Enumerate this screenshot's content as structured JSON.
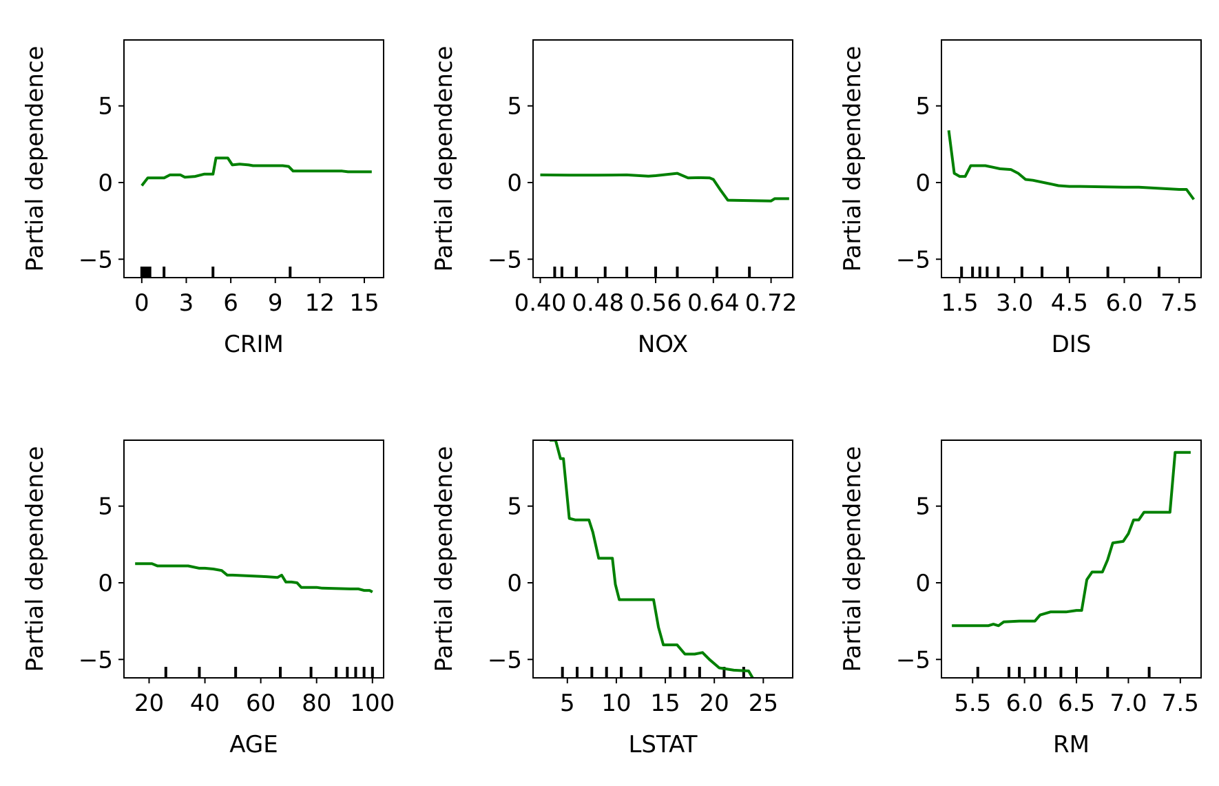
{
  "figure": {
    "background": "#ffffff",
    "line_color": "#008000",
    "rug_color": "#000000"
  },
  "chart_data": [
    {
      "type": "line",
      "xlabel": "CRIM",
      "ylabel": "Partial dependence",
      "xlim": [
        -1.2,
        16.3
      ],
      "ylim": [
        -6.2,
        9.3
      ],
      "xticks": [
        0,
        3,
        6,
        9,
        12,
        15
      ],
      "xtick_labels": [
        "0",
        "3",
        "6",
        "9",
        "12",
        "15"
      ],
      "yticks": [
        -5,
        0,
        5
      ],
      "ytick_labels": [
        "−5",
        "0",
        "5"
      ],
      "rug": [
        0.0,
        0.05,
        0.1,
        0.15,
        0.2,
        0.25,
        0.3,
        0.35,
        0.4,
        0.45,
        0.5,
        0.55,
        1.5,
        4.8,
        10.0
      ],
      "x": [
        0.0,
        0.4,
        1.5,
        1.9,
        2.6,
        2.9,
        3.6,
        4.2,
        4.8,
        5.0,
        5.8,
        6.1,
        6.6,
        7.2,
        7.5,
        9.5,
        9.9,
        10.2,
        13.5,
        13.9,
        15.5
      ],
      "y": [
        -0.2,
        0.3,
        0.3,
        0.5,
        0.5,
        0.35,
        0.4,
        0.55,
        0.55,
        1.6,
        1.6,
        1.15,
        1.2,
        1.15,
        1.1,
        1.1,
        1.05,
        0.75,
        0.75,
        0.7,
        0.7
      ]
    },
    {
      "type": "line",
      "xlabel": "NOX",
      "ylabel": "Partial dependence",
      "xlim": [
        0.39,
        0.75
      ],
      "ylim": [
        -6.2,
        9.3
      ],
      "xticks": [
        0.4,
        0.48,
        0.56,
        0.64,
        0.72
      ],
      "xtick_labels": [
        "0.40",
        "0.48",
        "0.56",
        "0.64",
        "0.72"
      ],
      "yticks": [
        -5,
        0,
        5
      ],
      "ytick_labels": [
        "−5",
        "0",
        "5"
      ],
      "rug": [
        0.42,
        0.43,
        0.45,
        0.49,
        0.52,
        0.56,
        0.59,
        0.645,
        0.69
      ],
      "x": [
        0.4,
        0.44,
        0.48,
        0.52,
        0.55,
        0.56,
        0.58,
        0.59,
        0.605,
        0.62,
        0.635,
        0.64,
        0.65,
        0.66,
        0.72,
        0.725,
        0.745
      ],
      "y": [
        0.5,
        0.48,
        0.48,
        0.5,
        0.42,
        0.45,
        0.55,
        0.6,
        0.3,
        0.32,
        0.3,
        0.2,
        -0.5,
        -1.15,
        -1.2,
        -1.05,
        -1.05
      ]
    },
    {
      "type": "line",
      "xlabel": "DIS",
      "ylabel": "Partial dependence",
      "xlim": [
        1.0,
        8.1
      ],
      "ylim": [
        -6.2,
        9.3
      ],
      "xticks": [
        1.5,
        3.0,
        4.5,
        6.0,
        7.5
      ],
      "xtick_labels": [
        "1.5",
        "3.0",
        "4.5",
        "6.0",
        "7.5"
      ],
      "yticks": [
        -5,
        0,
        5
      ],
      "ytick_labels": [
        "−5",
        "0",
        "5"
      ],
      "rug": [
        1.55,
        1.85,
        2.05,
        2.25,
        2.55,
        3.2,
        3.75,
        4.45,
        5.55,
        6.95
      ],
      "x": [
        1.2,
        1.35,
        1.5,
        1.65,
        1.8,
        2.2,
        2.4,
        2.6,
        2.9,
        3.1,
        3.3,
        3.5,
        4.0,
        4.2,
        4.5,
        4.8,
        6.0,
        6.4,
        7.5,
        7.7,
        7.9
      ],
      "y": [
        3.4,
        0.6,
        0.4,
        0.4,
        1.1,
        1.1,
        1.0,
        0.9,
        0.85,
        0.6,
        0.2,
        0.15,
        -0.1,
        -0.2,
        -0.25,
        -0.25,
        -0.3,
        -0.3,
        -0.45,
        -0.45,
        -1.1
      ]
    },
    {
      "type": "line",
      "xlabel": "AGE",
      "ylabel": "Partial dependence",
      "xlim": [
        11,
        104
      ],
      "ylim": [
        -6.2,
        9.3
      ],
      "xticks": [
        20,
        40,
        60,
        80,
        100
      ],
      "xtick_labels": [
        "20",
        "40",
        "60",
        "80",
        "100"
      ],
      "yticks": [
        -5,
        0,
        5
      ],
      "ytick_labels": [
        "−5",
        "0",
        "5"
      ],
      "rug": [
        26,
        38,
        51,
        67,
        78,
        87,
        91,
        94,
        97,
        100
      ],
      "x": [
        15,
        21,
        23,
        34,
        38,
        40,
        43,
        46,
        48,
        50,
        62,
        66,
        67.5,
        69,
        71,
        73,
        74.5,
        76,
        80,
        82,
        92,
        95,
        97,
        99,
        100
      ],
      "y": [
        1.25,
        1.25,
        1.1,
        1.1,
        0.95,
        0.95,
        0.9,
        0.8,
        0.5,
        0.5,
        0.4,
        0.35,
        0.5,
        0.05,
        0.05,
        0.0,
        -0.3,
        -0.3,
        -0.3,
        -0.35,
        -0.4,
        -0.4,
        -0.5,
        -0.5,
        -0.6
      ]
    },
    {
      "type": "line",
      "xlabel": "LSTAT",
      "ylabel": "Partial dependence",
      "xlim": [
        1.5,
        28.0
      ],
      "ylim": [
        -6.2,
        9.3
      ],
      "xticks": [
        5,
        10,
        15,
        20,
        25
      ],
      "xtick_labels": [
        "5",
        "10",
        "15",
        "20",
        "25"
      ],
      "yticks": [
        -5,
        0,
        5
      ],
      "ytick_labels": [
        "−5",
        "0",
        "5"
      ],
      "rug": [
        4.5,
        6.0,
        7.5,
        9.0,
        10.5,
        12.5,
        15.5,
        17.0,
        18.5,
        21.0,
        23.0
      ],
      "x": [
        3.2,
        3.8,
        4.3,
        4.6,
        5.2,
        5.8,
        7.2,
        7.6,
        8.2,
        8.6,
        9.6,
        9.9,
        10.3,
        11.2,
        13.8,
        14.3,
        14.8,
        16.2,
        17.0,
        18.0,
        18.8,
        19.5,
        20.5,
        22.0,
        23.5,
        24.0,
        27.0
      ],
      "y": [
        9.3,
        9.3,
        8.1,
        8.1,
        4.2,
        4.1,
        4.1,
        3.3,
        1.6,
        1.6,
        1.6,
        -0.1,
        -1.1,
        -1.1,
        -1.1,
        -2.9,
        -4.05,
        -4.05,
        -4.65,
        -4.65,
        -4.55,
        -5.0,
        -5.55,
        -5.7,
        -5.75,
        -6.3,
        -6.3
      ]
    },
    {
      "type": "line",
      "xlabel": "RM",
      "ylabel": "Partial dependence",
      "xlim": [
        5.2,
        7.7
      ],
      "ylim": [
        -6.2,
        9.3
      ],
      "xticks": [
        5.5,
        6.0,
        6.5,
        7.0,
        7.5
      ],
      "xtick_labels": [
        "5.5",
        "6.0",
        "6.5",
        "7.0",
        "7.5"
      ],
      "yticks": [
        -5,
        0,
        5
      ],
      "ytick_labels": [
        "−5",
        "0",
        "5"
      ],
      "rug": [
        5.55,
        5.85,
        5.95,
        6.1,
        6.2,
        6.35,
        6.5,
        6.8,
        7.2
      ],
      "x": [
        5.3,
        5.65,
        5.7,
        5.75,
        5.8,
        5.95,
        6.1,
        6.15,
        6.25,
        6.4,
        6.5,
        6.55,
        6.6,
        6.65,
        6.75,
        6.8,
        6.85,
        6.95,
        7.0,
        7.05,
        7.1,
        7.15,
        7.4,
        7.45,
        7.6
      ],
      "y": [
        -2.8,
        -2.8,
        -2.7,
        -2.8,
        -2.55,
        -2.5,
        -2.5,
        -2.1,
        -1.9,
        -1.9,
        -1.8,
        -1.8,
        0.2,
        0.7,
        0.7,
        1.5,
        2.6,
        2.7,
        3.2,
        4.1,
        4.1,
        4.6,
        4.6,
        8.5,
        8.5
      ]
    }
  ]
}
